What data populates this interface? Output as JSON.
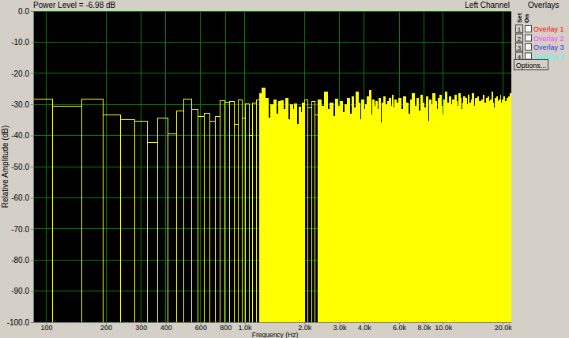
{
  "chart_data": {
    "type": "histogram",
    "title": "Power Level = -6.98 dB",
    "subtitle": "Left Channel",
    "x_label": "Frequency (Hz)",
    "y_label": "Relative Amplitude (dB)",
    "color": "#ffff00",
    "log": "x",
    "grid": true,
    "xlim": [
      86,
      22050
    ],
    "ylim": [
      -100,
      0
    ],
    "xticks": [
      100,
      200,
      300,
      400,
      600,
      800,
      {
        "value": 1000,
        "label": "1.0k"
      },
      {
        "value": 2000,
        "label": "2.0k"
      },
      {
        "value": 3000,
        "label": "3.0k"
      },
      {
        "value": 4000,
        "label": "4.0k"
      },
      {
        "value": 6000,
        "label": "6.0k"
      },
      {
        "value": 8000,
        "label": "8.0k"
      },
      {
        "value": 10000,
        "label": "10.0k"
      },
      {
        "value": 20000,
        "label": "20.0k"
      }
    ],
    "yticks": [
      {
        "value": 0,
        "label": "0.0"
      },
      {
        "value": -10,
        "label": "-10.0"
      },
      {
        "value": -20,
        "label": "-20.0"
      },
      {
        "value": -30,
        "label": "-30.0"
      },
      {
        "value": -40,
        "label": "-40.0"
      },
      {
        "value": -50,
        "label": "-50.0"
      },
      {
        "value": -60,
        "label": "-60.0"
      },
      {
        "value": -70,
        "label": "-70.0"
      },
      {
        "value": -80,
        "label": "-80.0"
      },
      {
        "value": -90,
        "label": "-90.0"
      },
      {
        "value": -100,
        "label": "-100.0"
      }
    ],
    "bins": [
      64.6,
      107.7,
      150.7,
      193.8,
      236.9,
      279.9,
      323.0,
      366.1,
      409.1,
      452.2,
      495.3,
      538.3,
      581.4,
      624.5,
      667.5,
      710.6,
      753.7,
      796.7,
      839.8,
      882.9,
      925.9,
      969.0,
      1012.0,
      1055.1,
      1098.2,
      1141.2,
      1184.3,
      1227.4,
      1270.4,
      1313.5,
      1356.6,
      1399.6,
      1442.7,
      1485.8,
      1528.8,
      1571.9,
      1614.9,
      1658.0,
      1701.1,
      1744.1,
      1787.2,
      1830.3,
      1873.3,
      1916.4,
      1959.5,
      2002.5,
      2088.6,
      2174.7,
      2260.8,
      2346.9,
      2433.0,
      2519.1,
      2605.2,
      2691.3,
      2777.4,
      2863.5,
      2949.6,
      3035.7,
      3121.8,
      3207.9,
      3294.0,
      3380.1,
      3466.2,
      3552.3,
      3638.4,
      3724.5,
      3810.6,
      3896.7,
      3982.8,
      4068.9,
      4155.0,
      4241.1,
      4327.2,
      4413.3,
      4499.4,
      4585.5,
      4671.6,
      4757.7,
      4843.8,
      4929.9,
      5016.0,
      5102.1,
      5188.2,
      5274.3,
      5360.4,
      5446.5,
      5532.6,
      5618.7,
      5704.8,
      5790.9,
      5877.0,
      5963.1,
      6135.3,
      6307.5,
      6479.7,
      6651.9,
      6824.1,
      6996.3,
      7168.5,
      7340.7,
      7512.9,
      7685.1,
      7857.3,
      8029.5,
      8201.7,
      8373.9,
      8546.1,
      8718.3,
      8890.5,
      9062.7,
      9234.9,
      9407.1,
      9579.3,
      9751.5,
      9923.7,
      10095.9,
      10268.1,
      10440.3,
      10612.5,
      10784.7,
      10956.9,
      11129.1,
      11301.3,
      11473.5,
      11645.7,
      11817.9,
      11990.1,
      12162.3,
      12334.5,
      12506.7,
      12678.9,
      12851.1,
      13023.3,
      13195.5,
      13367.7,
      13539.9,
      13712.1,
      13884.3,
      14056.5,
      14228.7,
      14400.9,
      14573.1,
      14745.3,
      14917.5,
      15089.7,
      15261.9,
      15434.1,
      15606.3,
      15778.5,
      15950.7,
      16122.9,
      16295.1,
      16467.3,
      16639.5,
      16811.7,
      16983.9,
      17156.1,
      17328.3,
      17500.5,
      17672.7,
      17844.9,
      18017.1,
      18189.3,
      18361.5,
      18533.7,
      18705.9,
      18878.1,
      19050.3,
      19222.5,
      19394.7,
      19566.9,
      19739.1,
      19911.3,
      20083.5,
      20255.7,
      20427.9,
      20600.1,
      20772.3,
      20944.5,
      21116.7,
      21288.9,
      21461.1,
      21633.3,
      21805.5,
      21977.7,
      22149.9
    ],
    "values": [
      -28.2,
      -30.5,
      -28.2,
      -33.3,
      -35.0,
      -35.5,
      -42.3,
      -34.3,
      -39.5,
      -32.2,
      -28.2,
      -31.5,
      -34.0,
      -32.8,
      -35.5,
      -33.8,
      -28.8,
      -29.3,
      -29.0,
      -36.5,
      -28.5,
      -34.5,
      -29.8,
      -40.0,
      -29.5,
      -28.5,
      -26.5,
      -24.8,
      -28.0,
      -34.5,
      -30.0,
      -28.5,
      -33.0,
      -29.0,
      -28.7,
      -31.5,
      -28.0,
      -35.0,
      -30.2,
      -31.5,
      -29.8,
      -36.5,
      -30.8,
      -32.5,
      -29.5,
      -28.5,
      -31.0,
      -29.0,
      -33.5,
      -28.5,
      -30.5,
      -26.0,
      -31.5,
      -29.5,
      -34.0,
      -28.2,
      -30.5,
      -29.0,
      -32.5,
      -30.0,
      -28.0,
      -33.0,
      -27.5,
      -31.0,
      -26.0,
      -29.5,
      -35.0,
      -28.5,
      -31.5,
      -30.0,
      -27.5,
      -25.5,
      -33.5,
      -28.5,
      -30.5,
      -29.0,
      -31.5,
      -28.0,
      -36.0,
      -29.5,
      -27.5,
      -30.0,
      -32.0,
      -29.0,
      -28.0,
      -30.5,
      -27.0,
      -31.0,
      -28.5,
      -34.0,
      -29.5,
      -28.0,
      -31.5,
      -27.5,
      -29.5,
      -33.0,
      -28.5,
      -26.5,
      -30.5,
      -28.0,
      -32.0,
      -27.0,
      -29.5,
      -31.0,
      -27.5,
      -35.5,
      -28.5,
      -30.0,
      -26.5,
      -29.0,
      -31.5,
      -28.0,
      -27.0,
      -30.5,
      -33.5,
      -28.5,
      -26.0,
      -29.5,
      -31.0,
      -27.5,
      -30.0,
      -28.5,
      -32.5,
      -27.0,
      -29.0,
      -30.5,
      -26.5,
      -28.0,
      -31.5,
      -29.5,
      -27.5,
      -33.0,
      -28.0,
      -30.0,
      -27.0,
      -29.5,
      -31.0,
      -28.5,
      -26.5,
      -30.5,
      -32.0,
      -28.0,
      -29.5,
      -27.5,
      -31.0,
      -29.0,
      -36.5,
      -28.5,
      -30.0,
      -27.0,
      -29.5,
      -31.5,
      -28.0,
      -30.5,
      -27.5,
      -29.0,
      -32.5,
      -28.5,
      -30.0,
      -26.0,
      -29.5,
      -31.0,
      -28.0,
      -30.5,
      -27.5,
      -29.0,
      -32.0,
      -28.5,
      -30.0,
      -27.0,
      -29.5,
      -31.5,
      -28.5,
      -30.0,
      -27.5,
      -33.0,
      -29.0,
      -30.5,
      -28.0,
      -31.0,
      -27.5,
      -29.5,
      -32.0,
      -26.5,
      -30.0
    ]
  },
  "panel": {
    "title": "Overlays",
    "columns": [
      "Set",
      "On"
    ],
    "items": [
      {
        "number": 1,
        "label": "Overlay 1",
        "color": "#ff0000"
      },
      {
        "number": 2,
        "label": "Overlay 2",
        "color": "#ff40ff"
      },
      {
        "number": 3,
        "label": "Overlay 3",
        "color": "#3030e0"
      },
      {
        "number": 4,
        "label": "Overlay 4",
        "color": "#40ffff"
      }
    ],
    "button": "Options..."
  }
}
